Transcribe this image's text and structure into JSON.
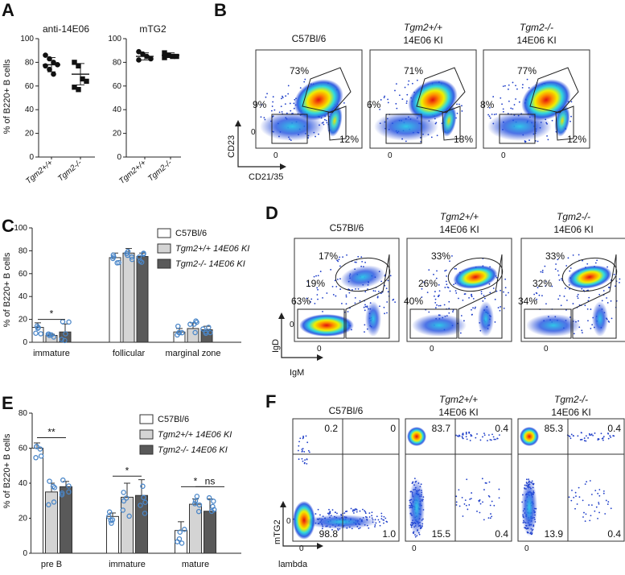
{
  "panels": {
    "A": {
      "label": "A",
      "ylabel": "% of B220+ B cells",
      "yticks": [
        "0",
        "20",
        "40",
        "60",
        "80",
        "100"
      ],
      "charts": [
        {
          "title": "anti-14E06",
          "groups": [
            "Tgm2+/+",
            "Tgm2-/-"
          ],
          "points": [
            [
              86,
              83,
              80,
              78,
              77,
              74,
              70
            ],
            [
              80,
              77,
              66,
              64,
              59,
              57
            ]
          ],
          "means": [
            78,
            70
          ],
          "sds": [
            6,
            9
          ]
        },
        {
          "title": "mTG2",
          "groups": [
            "Tgm2+/+",
            "Tgm2-/-"
          ],
          "points": [
            [
              89,
              87,
              85,
              83,
              82
            ],
            [
              88,
              86,
              85,
              85,
              84
            ]
          ],
          "means": [
            85,
            86
          ],
          "sds": [
            3,
            2
          ]
        }
      ]
    },
    "B": {
      "label": "B",
      "headers": [
        {
          "line1": "C57Bl/6",
          "line2": ""
        },
        {
          "line1": "Tgm2+/+",
          "line2": "14E06 KI"
        },
        {
          "line1": "Tgm2-/-",
          "line2": "14E06 KI"
        }
      ],
      "ylab": "CD23",
      "xlab": "CD21/35",
      "pcts": [
        [
          "73%",
          "9%",
          "12%"
        ],
        [
          "71%",
          "6%",
          "18%"
        ],
        [
          "77%",
          "8%",
          "12%"
        ]
      ],
      "tick0": "0"
    },
    "C": {
      "label": "C",
      "ylabel": "% of B220+ B cells",
      "yticks": [
        "0",
        "20",
        "40",
        "60",
        "80",
        "100"
      ],
      "legend": [
        "C57Bl/6",
        "Tgm2+/+ 14E06 KI",
        "Tgm2-/- 14E06 KI"
      ],
      "categories": [
        "immature",
        "follicular",
        "marginal zone"
      ],
      "means": [
        [
          13,
          6,
          9
        ],
        [
          74,
          78,
          75
        ],
        [
          9,
          12,
          11
        ]
      ],
      "errors": [
        [
          4,
          1,
          7
        ],
        [
          4,
          4,
          3
        ],
        [
          3,
          5,
          3
        ]
      ],
      "sig": "*"
    },
    "D": {
      "label": "D",
      "headers": [
        {
          "line1": "C57Bl/6",
          "line2": ""
        },
        {
          "line1": "Tgm2+/+",
          "line2": "14E06 KI"
        },
        {
          "line1": "Tgm2-/-",
          "line2": "14E06 KI"
        }
      ],
      "ylab": "IgD",
      "xlab": "IgM",
      "pcts": [
        [
          "17%",
          "19%",
          "63%"
        ],
        [
          "33%",
          "26%",
          "40%"
        ],
        [
          "33%",
          "32%",
          "34%"
        ]
      ],
      "tick0": "0"
    },
    "E": {
      "label": "E",
      "ylabel": "% of B220+ B cells",
      "yticks": [
        "0",
        "20",
        "40",
        "60",
        "80"
      ],
      "legend": [
        "C57Bl/6",
        "Tgm2+/+ 14E06 KI",
        "Tgm2-/- 14E06 KI"
      ],
      "categories": [
        "pre B",
        "immature",
        "mature"
      ],
      "means": [
        [
          60,
          35,
          38
        ],
        [
          21,
          32,
          33
        ],
        [
          13,
          28,
          24
        ]
      ],
      "errors": [
        [
          3,
          5,
          3
        ],
        [
          2,
          8,
          9
        ],
        [
          5,
          3,
          7
        ]
      ],
      "sigs": [
        "**",
        "*",
        "*",
        "ns"
      ]
    },
    "F": {
      "label": "F",
      "headers": [
        {
          "line1": "C57Bl/6",
          "line2": ""
        },
        {
          "line1": "Tgm2+/+",
          "line2": "14E06 KI"
        },
        {
          "line1": "Tgm2-/-",
          "line2": "14E06 KI"
        }
      ],
      "ylab": "mTG2",
      "xlab": "lambda",
      "quadrants": [
        [
          "0.2",
          "0",
          "98.8",
          "1.0"
        ],
        [
          "83.7",
          "0.4",
          "15.5",
          "0.4"
        ],
        [
          "85.3",
          "0.4",
          "13.9",
          "0.4"
        ]
      ],
      "tick0": "0"
    }
  },
  "colors": {
    "light_bar": "#d4d4d4",
    "dark_bar": "#595959",
    "dot": "#4a86c8",
    "density_low": "#1c3cc8"
  }
}
